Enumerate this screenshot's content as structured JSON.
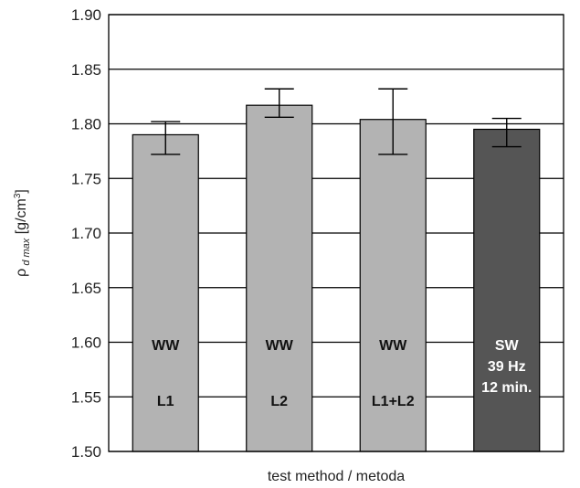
{
  "chart_data": {
    "type": "bar",
    "title": "",
    "xlabel": "test method / metoda",
    "ylabel": {
      "symbol": "ρ",
      "subscript": "d max",
      "unit_prefix": " [g/cm",
      "unit_sup": "3",
      "unit_suffix": "]"
    },
    "ylim": [
      1.5,
      1.9
    ],
    "yticks": [
      "1.50",
      "1.55",
      "1.60",
      "1.65",
      "1.70",
      "1.75",
      "1.80",
      "1.85",
      "1.90"
    ],
    "grid": "horizontal",
    "categories": [
      "WW L1",
      "WW L2",
      "WW L1+L2",
      "SW 39 Hz 12 min."
    ],
    "bars": [
      {
        "value": 1.79,
        "err_low": 1.772,
        "err_high": 1.802,
        "labels": [
          "WW",
          "L1"
        ],
        "color": "#b3b3b3",
        "text_color": "#111111"
      },
      {
        "value": 1.817,
        "err_low": 1.806,
        "err_high": 1.832,
        "labels": [
          "WW",
          "L2"
        ],
        "color": "#b3b3b3",
        "text_color": "#111111"
      },
      {
        "value": 1.804,
        "err_low": 1.772,
        "err_high": 1.832,
        "labels": [
          "WW",
          "L1+L2"
        ],
        "color": "#b3b3b3",
        "text_color": "#111111"
      },
      {
        "value": 1.795,
        "err_low": 1.779,
        "err_high": 1.805,
        "labels": [
          "SW",
          "39 Hz",
          "12 min."
        ],
        "color": "#555555",
        "text_color": "#ffffff"
      }
    ]
  }
}
